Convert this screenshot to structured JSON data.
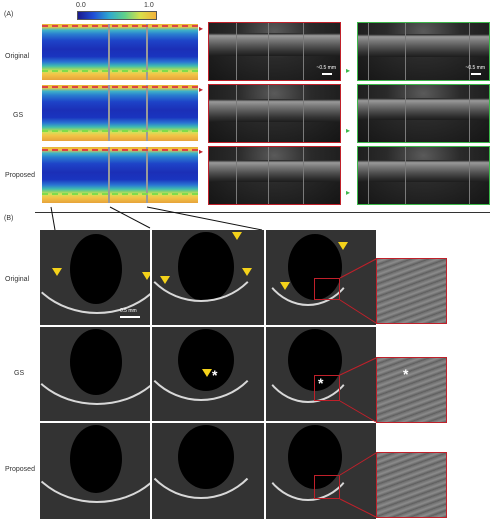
{
  "colorbar": {
    "min": "0.0",
    "max": "1.0"
  },
  "section_a": "(A)",
  "section_b": "(B)",
  "rows_a": [
    "Original",
    "GS",
    "Proposed"
  ],
  "rows_b": [
    "Original",
    "GS",
    "Proposed"
  ],
  "scale_labels": [
    "~0.5 mm",
    "~0.5 mm"
  ],
  "scale_bar_b": "0.5 mm",
  "asterisk": "*"
}
